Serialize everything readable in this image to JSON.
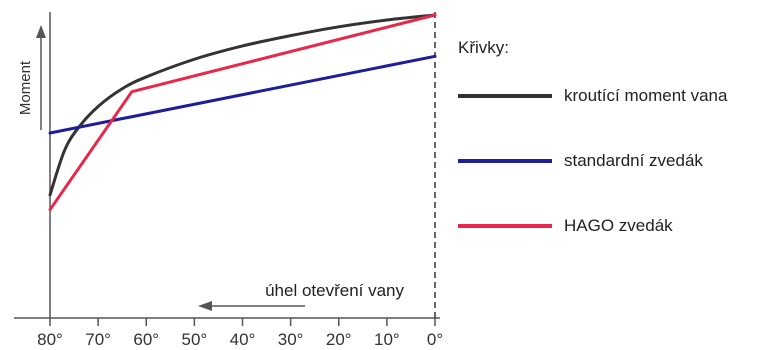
{
  "chart_data": {
    "type": "line",
    "title": "",
    "xlabel": "úhel otevření vany",
    "ylabel": "Moment",
    "x_reversed": true,
    "xlim": [
      80,
      0
    ],
    "ylim": [
      0,
      100
    ],
    "categories": [
      "80°",
      "70°",
      "60°",
      "50°",
      "40°",
      "30°",
      "20°",
      "10°",
      "0°"
    ],
    "tick_values": [
      80,
      70,
      60,
      50,
      40,
      30,
      20,
      10,
      0
    ],
    "legend_title": "Křivky:",
    "legend_position": "right",
    "series": [
      {
        "name": "kroutící moment vana",
        "color": "#333333",
        "points": [
          [
            80,
            39
          ],
          [
            77,
            54
          ],
          [
            74,
            62
          ],
          [
            70,
            69
          ],
          [
            65,
            75
          ],
          [
            60,
            79
          ],
          [
            50,
            85
          ],
          [
            40,
            89.5
          ],
          [
            30,
            93
          ],
          [
            20,
            96
          ],
          [
            10,
            98.3
          ],
          [
            0,
            100
          ]
        ]
      },
      {
        "name": "standardní zvedák",
        "color": "#1e1e9a",
        "points": [
          [
            80,
            60
          ],
          [
            0,
            86
          ]
        ]
      },
      {
        "name": "HAGO zvedák",
        "color": "#e8284a",
        "points": [
          [
            80,
            34
          ],
          [
            63,
            74
          ],
          [
            0,
            100
          ]
        ]
      }
    ]
  }
}
